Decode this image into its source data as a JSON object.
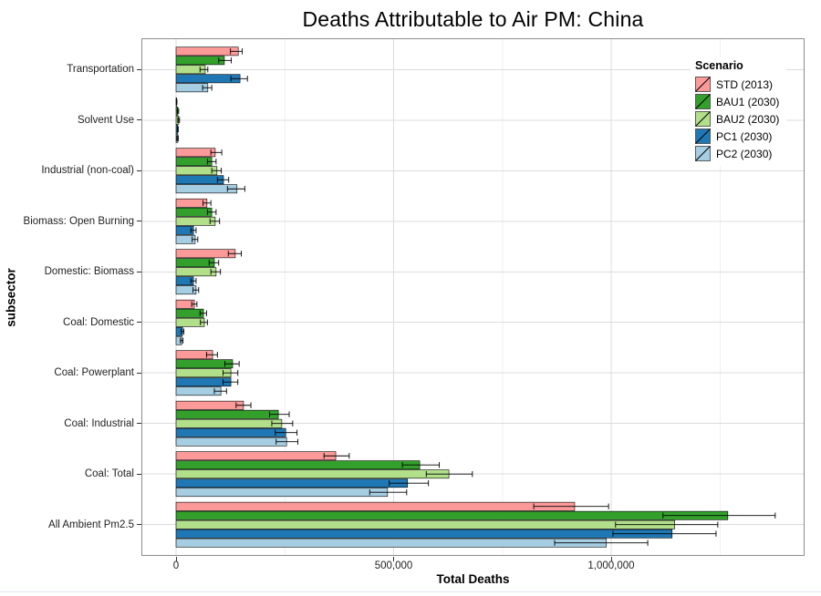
{
  "chart_data": {
    "type": "bar",
    "orientation": "horizontal",
    "title": "Deaths Attributable to Air PM: China",
    "xlabel": "Total Deaths",
    "ylabel": "subsector",
    "legend_title": "Scenario",
    "legend_position": "top-right-inside",
    "grid": true,
    "xlim": [
      -80000,
      1450000
    ],
    "x_major_ticks": [
      0,
      500000,
      1000000
    ],
    "x_tick_labels": [
      "0",
      "500,000",
      "1,000,000"
    ],
    "x_minor_ticks": [
      250000,
      750000,
      1250000
    ],
    "categories": [
      "Transportation",
      "Solvent Use",
      "Industrial (non-coal)",
      "Biomass: Open Burning",
      "Domestic: Biomass",
      "Coal: Domestic",
      "Coal: Powerplant",
      "Coal: Industrial",
      "Coal: Total",
      "All Ambient Pm2.5"
    ],
    "series": [
      {
        "name": "STD (2013)",
        "color": "#FB9A99",
        "values": [
          143000,
          1000,
          90000,
          71000,
          136000,
          42000,
          84000,
          155000,
          367000,
          916000
        ],
        "error_low": [
          125000,
          500,
          80000,
          62000,
          120000,
          36000,
          70000,
          138000,
          340000,
          822000
        ],
        "error_high": [
          152000,
          2000,
          105000,
          80000,
          150000,
          48000,
          95000,
          172000,
          398000,
          994000
        ]
      },
      {
        "name": "BAU1 (2030)",
        "color": "#33A02C",
        "values": [
          111000,
          4000,
          82000,
          82000,
          88000,
          63000,
          130000,
          235000,
          560000,
          1268000
        ],
        "error_low": [
          98000,
          3000,
          72000,
          72000,
          76000,
          55000,
          112000,
          215000,
          520000,
          1119000
        ],
        "error_high": [
          127000,
          6000,
          92000,
          92000,
          98000,
          70000,
          145000,
          260000,
          605000,
          1377000
        ]
      },
      {
        "name": "BAU2 (2030)",
        "color": "#B2DF8A",
        "values": [
          67000,
          6000,
          94000,
          90000,
          92000,
          65000,
          126000,
          243000,
          627000,
          1146000
        ],
        "error_low": [
          55000,
          4000,
          82000,
          78000,
          80000,
          56000,
          108000,
          220000,
          575000,
          1010000
        ],
        "error_high": [
          73000,
          8000,
          104000,
          100000,
          102000,
          72000,
          142000,
          268000,
          681000,
          1245000
        ]
      },
      {
        "name": "PC1 (2030)",
        "color": "#1F78B4",
        "values": [
          147000,
          4000,
          109000,
          40000,
          40000,
          15000,
          126000,
          252000,
          532000,
          1140000
        ],
        "error_low": [
          126000,
          3000,
          95000,
          34000,
          34000,
          12000,
          108000,
          228000,
          490000,
          1004000
        ],
        "error_high": [
          164000,
          5000,
          121000,
          46000,
          46000,
          18000,
          142000,
          278000,
          580000,
          1241000
        ]
      },
      {
        "name": "PC2 (2030)",
        "color": "#A6CEE3",
        "values": [
          73000,
          4000,
          140000,
          44000,
          46000,
          13000,
          103000,
          254000,
          486000,
          989000
        ],
        "error_low": [
          61000,
          2000,
          118000,
          37000,
          39000,
          10000,
          88000,
          230000,
          445000,
          870000
        ],
        "error_high": [
          82000,
          5000,
          158000,
          50000,
          52000,
          16000,
          116000,
          280000,
          530000,
          1084000
        ]
      }
    ],
    "style": {
      "grid_major_color": "#dcdcdc",
      "grid_minor_color": "#f0f0f0",
      "bar_stroke_color": "#000000",
      "errorbar_color": "#000000",
      "panel_border_color": "#8c8c8c"
    }
  }
}
